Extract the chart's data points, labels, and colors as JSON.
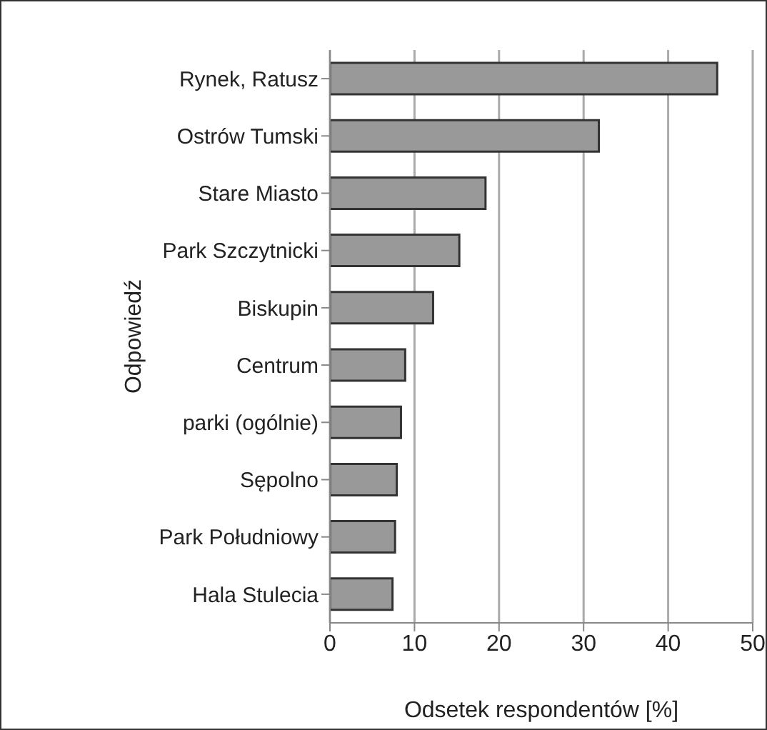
{
  "chart_data": {
    "type": "bar",
    "orientation": "horizontal",
    "xlabel": "Odsetek respondentów [%]",
    "ylabel": "Odpowiedź",
    "categories": [
      "Rynek, Ratusz",
      "Ostrów Tumski",
      "Stare Miasto",
      "Park Szczytnicki",
      "Biskupin",
      "Centrum",
      "parki (ogólnie)",
      "Sępolno",
      "Park Południowy",
      "Hala Stulecia"
    ],
    "values": [
      45.8,
      31.8,
      18.4,
      15.3,
      12.2,
      8.9,
      8.4,
      7.9,
      7.7,
      7.4
    ],
    "color": "#999999",
    "xlim": [
      0,
      50
    ],
    "xticks": [
      0,
      10,
      20,
      30,
      40,
      50
    ],
    "grid": "x"
  }
}
